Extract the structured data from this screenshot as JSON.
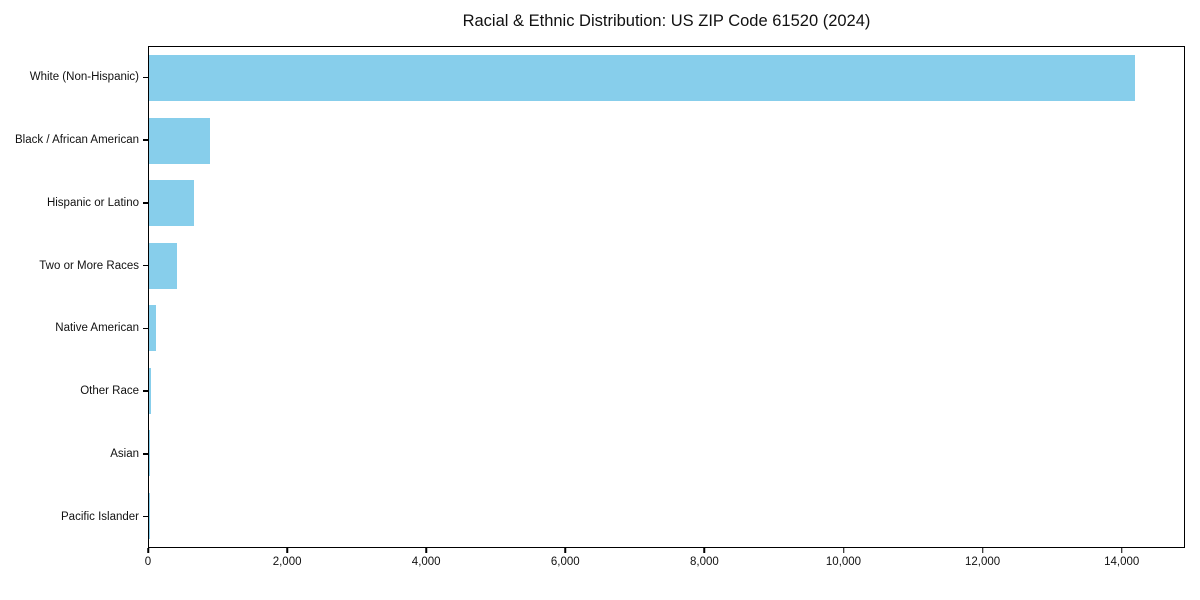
{
  "chart_data": {
    "type": "bar",
    "orientation": "horizontal",
    "title": "Racial & Ethnic Distribution: US ZIP Code 61520 (2024)",
    "categories": [
      "White (Non-Hispanic)",
      "Black / African American",
      "Hispanic or Latino",
      "Two or More Races",
      "Native American",
      "Other Race",
      "Asian",
      "Pacific Islander"
    ],
    "values": [
      14200,
      875,
      650,
      400,
      100,
      25,
      15,
      5
    ],
    "xlabel": "",
    "ylabel": "",
    "xlim": [
      0,
      14910
    ],
    "xticks": [
      0,
      2000,
      4000,
      6000,
      8000,
      10000,
      12000,
      14000
    ],
    "xtick_labels": [
      "0",
      "2,000",
      "4,000",
      "6,000",
      "8,000",
      "10,000",
      "12,000",
      "14,000"
    ],
    "bar_color": "#87CEEB",
    "axis_color": "#000000",
    "background_color": "#FFFFFF",
    "grid": false,
    "legend": null
  }
}
